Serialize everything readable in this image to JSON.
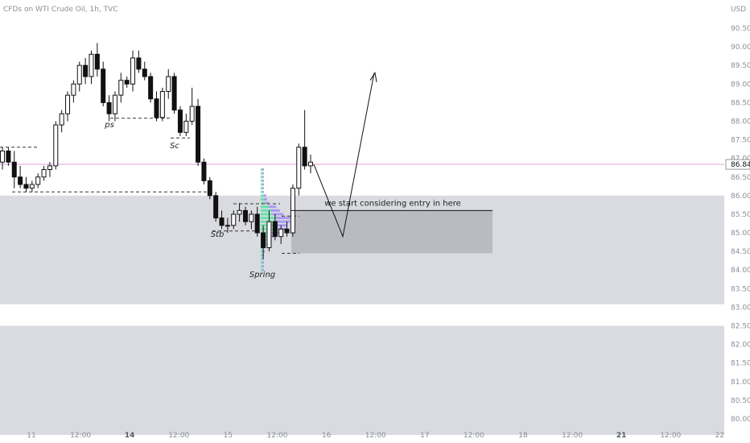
{
  "chart_data": {
    "type": "candlestick",
    "title": "CFDs on WTI Crude Oil, 1h, TVC",
    "currency": "USD",
    "last_price": "86.84",
    "y_ticks": [
      "90.50",
      "90.00",
      "89.50",
      "89.00",
      "88.50",
      "88.00",
      "87.50",
      "87.00",
      "86.50",
      "86.00",
      "85.50",
      "85.00",
      "84.50",
      "84.00",
      "83.50",
      "83.00",
      "82.50",
      "82.00",
      "81.50",
      "81.00",
      "80.50",
      "80.00"
    ],
    "ylim": [
      79.8,
      90.8
    ],
    "x_ticks": [
      {
        "label": "11",
        "bold": false
      },
      {
        "label": "12:00",
        "bold": false
      },
      {
        "label": "14",
        "bold": true
      },
      {
        "label": "12:00",
        "bold": false
      },
      {
        "label": "15",
        "bold": false
      },
      {
        "label": "12:00",
        "bold": false
      },
      {
        "label": "16",
        "bold": false
      },
      {
        "label": "12:00",
        "bold": false
      },
      {
        "label": "17",
        "bold": false
      },
      {
        "label": "12:00",
        "bold": false
      },
      {
        "label": "18",
        "bold": false
      },
      {
        "label": "12:00",
        "bold": false
      },
      {
        "label": "21",
        "bold": true
      },
      {
        "label": "12:00",
        "bold": false
      },
      {
        "label": "22",
        "bold": false
      }
    ],
    "candles": [
      [
        86.9,
        87.3,
        86.7,
        87.2
      ],
      [
        87.2,
        87.3,
        86.8,
        86.9
      ],
      [
        86.9,
        87.2,
        86.2,
        86.5
      ],
      [
        86.5,
        86.8,
        86.2,
        86.3
      ],
      [
        86.3,
        86.5,
        86.1,
        86.2
      ],
      [
        86.2,
        86.4,
        86.1,
        86.3
      ],
      [
        86.3,
        86.6,
        86.2,
        86.5
      ],
      [
        86.5,
        86.8,
        86.4,
        86.7
      ],
      [
        86.7,
        86.9,
        86.5,
        86.8
      ],
      [
        86.8,
        88.0,
        86.7,
        87.9
      ],
      [
        87.9,
        88.3,
        87.7,
        88.2
      ],
      [
        88.2,
        88.8,
        88.0,
        88.7
      ],
      [
        88.7,
        89.1,
        88.5,
        89.0
      ],
      [
        89.0,
        89.6,
        88.8,
        89.5
      ],
      [
        89.5,
        89.7,
        89.0,
        89.2
      ],
      [
        89.2,
        89.9,
        89.0,
        89.8
      ],
      [
        89.8,
        90.1,
        89.2,
        89.4
      ],
      [
        89.4,
        89.6,
        88.4,
        88.5
      ],
      [
        88.5,
        88.7,
        88.0,
        88.2
      ],
      [
        88.2,
        88.8,
        88.0,
        88.7
      ],
      [
        88.7,
        89.3,
        88.5,
        89.1
      ],
      [
        89.1,
        89.2,
        88.9,
        89.0
      ],
      [
        89.0,
        89.9,
        88.8,
        89.7
      ],
      [
        89.7,
        89.9,
        89.3,
        89.4
      ],
      [
        89.4,
        89.6,
        89.1,
        89.2
      ],
      [
        89.2,
        89.3,
        88.5,
        88.6
      ],
      [
        88.6,
        88.8,
        88.0,
        88.1
      ],
      [
        88.1,
        88.9,
        88.0,
        88.8
      ],
      [
        88.8,
        89.4,
        88.6,
        89.2
      ],
      [
        89.2,
        89.3,
        88.2,
        88.3
      ],
      [
        88.3,
        88.4,
        87.6,
        87.7
      ],
      [
        87.7,
        88.2,
        87.6,
        88.0
      ],
      [
        88.0,
        88.9,
        87.9,
        88.4
      ],
      [
        88.4,
        88.6,
        86.8,
        86.9
      ],
      [
        86.9,
        87.0,
        86.3,
        86.4
      ],
      [
        86.4,
        86.5,
        85.9,
        86.0
      ],
      [
        86.0,
        86.1,
        85.3,
        85.4
      ],
      [
        85.4,
        85.6,
        85.1,
        85.2
      ],
      [
        85.2,
        85.4,
        85.0,
        85.2
      ],
      [
        85.2,
        85.6,
        85.1,
        85.5
      ],
      [
        85.5,
        85.8,
        85.3,
        85.6
      ],
      [
        85.6,
        85.7,
        85.2,
        85.3
      ],
      [
        85.3,
        85.6,
        85.1,
        85.5
      ],
      [
        85.5,
        85.7,
        84.9,
        85.0
      ],
      [
        85.0,
        85.2,
        84.3,
        84.6
      ],
      [
        84.6,
        85.6,
        84.5,
        85.3
      ],
      [
        85.3,
        85.5,
        84.8,
        84.9
      ],
      [
        84.9,
        85.2,
        84.7,
        85.1
      ],
      [
        85.1,
        85.3,
        84.9,
        85.0
      ],
      [
        85.0,
        86.3,
        84.9,
        86.2
      ],
      [
        86.2,
        87.4,
        86.0,
        87.3
      ],
      [
        87.3,
        88.3,
        86.7,
        86.8
      ],
      [
        86.8,
        87.1,
        86.6,
        86.9
      ]
    ],
    "levels": [
      {
        "label": "ps",
        "price": 88.08
      },
      {
        "label": "Sc",
        "price": 87.55
      },
      {
        "label": "Stb",
        "price": 85.05
      },
      {
        "label": "Spring",
        "price": 84.05
      }
    ],
    "annotations": {
      "entry_text": "we start considering entry in here"
    }
  }
}
